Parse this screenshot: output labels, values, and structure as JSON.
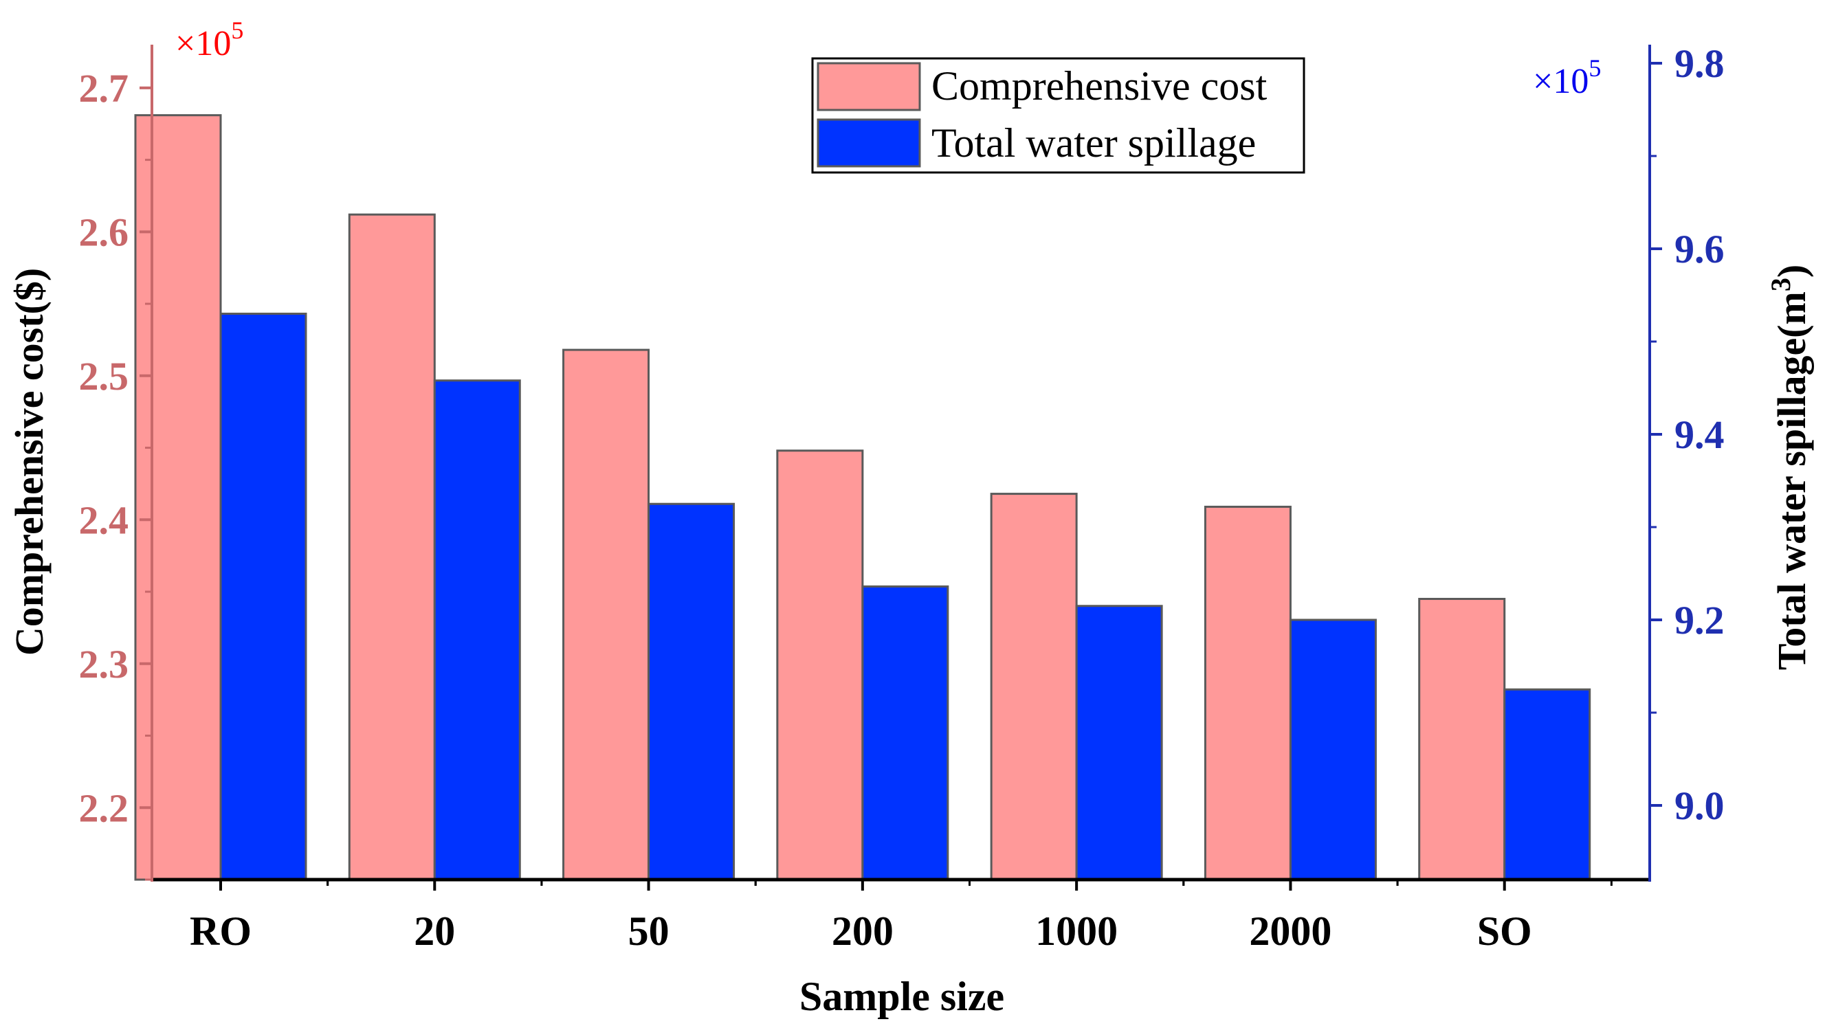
{
  "chart_data": {
    "type": "bar",
    "categories": [
      "RO",
      "20",
      "50",
      "200",
      "1000",
      "2000",
      "SO"
    ],
    "series": [
      {
        "name": "Comprehensive cost",
        "axis": "left",
        "values": [
          2.681,
          2.612,
          2.518,
          2.448,
          2.418,
          2.409,
          2.345
        ]
      },
      {
        "name": "Total water spillage",
        "axis": "right",
        "values": [
          9.53,
          9.458,
          9.325,
          9.236,
          9.215,
          9.2,
          9.125
        ]
      }
    ],
    "xlabel": "Sample size",
    "ylabel_left": "Comprehensive cost($)",
    "ylabel_right_main": "Total water spillage(m",
    "ylabel_right_sup": "3",
    "ylabel_right_end": ")",
    "left_axis": {
      "ylim": [
        2.15,
        2.73
      ],
      "ticks": [
        2.2,
        2.3,
        2.4,
        2.5,
        2.6,
        2.7
      ],
      "tick_labels": [
        "2.2",
        "2.3",
        "2.4",
        "2.5",
        "2.6",
        "2.7"
      ],
      "multiplier_base": "×10",
      "multiplier_exp": "5",
      "color": "#c8686a",
      "multiplier_color": "#ff0000"
    },
    "right_axis": {
      "ylim": [
        8.92,
        9.82
      ],
      "ticks": [
        9.0,
        9.2,
        9.4,
        9.6,
        9.8
      ],
      "tick_labels": [
        "9.0",
        "9.2",
        "9.4",
        "9.6",
        "9.8"
      ],
      "multiplier_base": "×10",
      "multiplier_exp": "5",
      "color": "#1f2fb0",
      "multiplier_color": "#0000ee"
    },
    "legend_placement": "top-center",
    "colors": {
      "cost_fill": "#ff9999",
      "spill_fill": "#0033ff",
      "bar_stroke": "#5a5a5a"
    }
  }
}
